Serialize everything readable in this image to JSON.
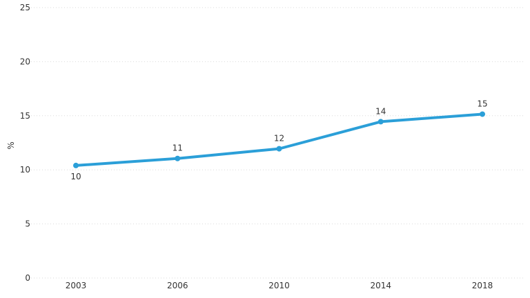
{
  "chart_data": {
    "type": "line",
    "title": "",
    "xlabel": "",
    "ylabel": "%",
    "categories": [
      "2003",
      "2006",
      "2010",
      "2014",
      "2018"
    ],
    "series": [
      {
        "values": [
          10.4,
          11.05,
          11.95,
          14.45,
          15.15
        ],
        "color": "#2b9fd8"
      }
    ],
    "data_labels": [
      "10",
      "11",
      "12",
      "14",
      "15"
    ],
    "ylim": [
      0,
      25
    ],
    "yticks": [
      "0",
      "5",
      "10",
      "15",
      "20",
      "25"
    ],
    "grid": true,
    "legend": "none"
  }
}
